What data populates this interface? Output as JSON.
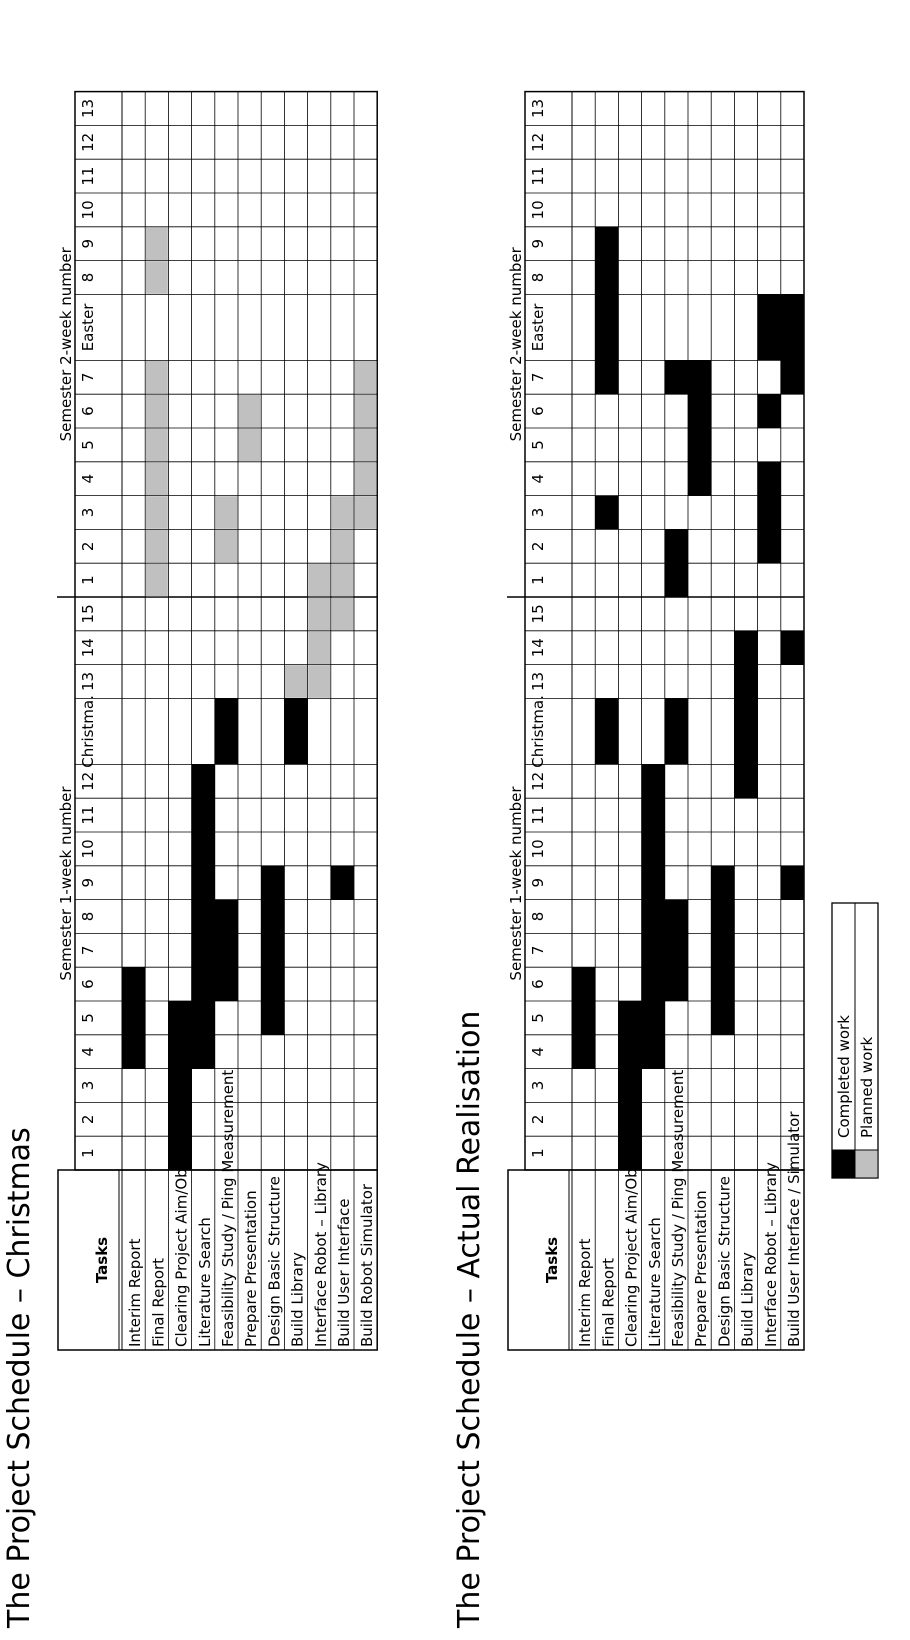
{
  "chart_data": [
    {
      "type": "gantt",
      "title": "The Project Schedule – Christmas",
      "tasks_header": "Tasks",
      "period_groups": [
        {
          "label": "Semester 1-week number",
          "columns": [
            "1",
            "2",
            "3",
            "4",
            "5",
            "6",
            "7",
            "8",
            "9",
            "10",
            "11",
            "12",
            "Christma.",
            "13",
            "14",
            "15"
          ]
        },
        {
          "label": "Semester 2-week number",
          "columns": [
            "1",
            "2",
            "3",
            "4",
            "5",
            "6",
            "7",
            "Easter",
            "8",
            "9",
            "10",
            "11",
            "12",
            "13"
          ]
        }
      ],
      "tasks": [
        {
          "name": "Interim Report",
          "completed": [
            3,
            4,
            5
          ],
          "planned": []
        },
        {
          "name": "Final Report",
          "completed": [],
          "planned": [
            16,
            17,
            18,
            19,
            20,
            21,
            22,
            24,
            25
          ]
        },
        {
          "name": "Clearing Project Aim/Objectives",
          "completed": [
            0,
            1,
            2,
            3,
            4
          ],
          "planned": []
        },
        {
          "name": "Literature Search",
          "completed": [
            3,
            4,
            5,
            6,
            7,
            8,
            9,
            10,
            11
          ],
          "planned": []
        },
        {
          "name": "Feasibility Study / Ping Measurement",
          "completed": [
            5,
            6,
            7,
            12
          ],
          "planned": [
            17,
            18
          ]
        },
        {
          "name": "Prepare Presentation",
          "completed": [],
          "planned": [
            20,
            21
          ]
        },
        {
          "name": "Design Basic Structure",
          "completed": [
            4,
            5,
            6,
            7,
            8
          ],
          "planned": []
        },
        {
          "name": "Build Library",
          "completed": [
            12
          ],
          "planned": [
            13
          ]
        },
        {
          "name": "Interface Robot – Library",
          "completed": [],
          "planned": [
            13,
            14,
            15,
            16
          ]
        },
        {
          "name": "Build User Interface",
          "completed": [
            8
          ],
          "planned": [
            15,
            16,
            17,
            18
          ]
        },
        {
          "name": "Build Robot Simulator",
          "completed": [],
          "planned": [
            18,
            19,
            20,
            21,
            22
          ]
        }
      ]
    },
    {
      "type": "gantt",
      "title": "The Project Schedule – Actual Realisation",
      "tasks_header": "Tasks",
      "period_groups": [
        {
          "label": "Semester 1-week number",
          "columns": [
            "1",
            "2",
            "3",
            "4",
            "5",
            "6",
            "7",
            "8",
            "9",
            "10",
            "11",
            "12",
            "Christma.",
            "13",
            "14",
            "15"
          ]
        },
        {
          "label": "Semester 2-week number",
          "columns": [
            "1",
            "2",
            "3",
            "4",
            "5",
            "6",
            "7",
            "Easter",
            "8",
            "9",
            "10",
            "11",
            "12",
            "13"
          ]
        }
      ],
      "tasks": [
        {
          "name": "Interim Report",
          "completed": [
            3,
            4,
            5
          ],
          "planned": []
        },
        {
          "name": "Final Report",
          "completed": [
            12,
            18,
            22,
            23,
            24,
            25
          ],
          "planned": []
        },
        {
          "name": "Clearing Project Aim/Objectives",
          "completed": [
            0,
            1,
            2,
            3,
            4
          ],
          "planned": []
        },
        {
          "name": "Literature Search",
          "completed": [
            3,
            4,
            5,
            6,
            7,
            8,
            9,
            10,
            11
          ],
          "planned": []
        },
        {
          "name": "Feasibility Study / Ping Measurement",
          "completed": [
            5,
            6,
            7,
            12,
            16,
            17,
            22
          ],
          "planned": []
        },
        {
          "name": "Prepare Presentation",
          "completed": [
            19,
            20,
            21,
            22
          ],
          "planned": []
        },
        {
          "name": "Design Basic Structure",
          "completed": [
            4,
            5,
            6,
            7,
            8
          ],
          "planned": []
        },
        {
          "name": "Build Library",
          "completed": [
            11,
            12,
            13,
            14
          ],
          "planned": []
        },
        {
          "name": "Interface Robot – Library",
          "completed": [
            17,
            18,
            19,
            21,
            23
          ],
          "planned": []
        },
        {
          "name": "Build User Interface / Simulator",
          "completed": [
            8,
            14,
            22,
            23
          ],
          "planned": []
        }
      ]
    }
  ],
  "legend": {
    "completed_label": "Completed work",
    "planned_label": "Planned work",
    "completed_color": "#000000",
    "planned_color": "#c0c0c0"
  }
}
